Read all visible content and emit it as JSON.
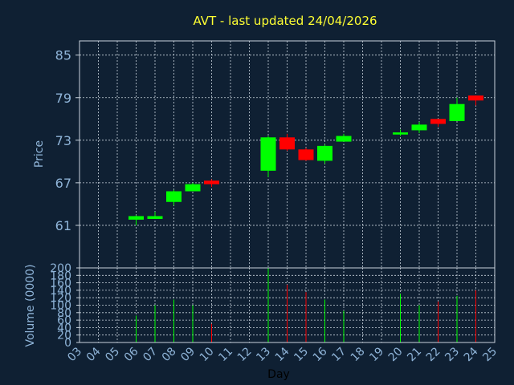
{
  "chart_data": {
    "type": "candlestick",
    "title": "AVT - last updated 24/04/2026",
    "colors": {
      "background": "#0f2033",
      "plot_border": "#c8d2dc",
      "grid": "#c8d2dc",
      "axis_text": "#8fb4d8",
      "title": "#ffff33",
      "up": "#00ff00",
      "down": "#ff0000",
      "xlabel": "#000000"
    },
    "price": {
      "ylabel": "Price",
      "ylim": [
        55,
        87
      ],
      "ticks": [
        61,
        67,
        73,
        79,
        85
      ],
      "grid": true
    },
    "volume": {
      "ylabel": "Volume (0000)",
      "ylim": [
        0,
        200
      ],
      "ticks": [
        0,
        20,
        40,
        60,
        80,
        100,
        120,
        140,
        160,
        180,
        200
      ],
      "grid": true
    },
    "x": {
      "xlabel": "Day",
      "ticks": [
        "03",
        "04",
        "05",
        "06",
        "07",
        "08",
        "09",
        "10",
        "11",
        "12",
        "13",
        "14",
        "15",
        "16",
        "17",
        "18",
        "19",
        "20",
        "21",
        "22",
        "23",
        "24",
        "25"
      ]
    },
    "candles": [
      {
        "day": "06",
        "open": 61.8,
        "high": 62.4,
        "low": 61.0,
        "close": 62.3,
        "volume": 72
      },
      {
        "day": "07",
        "open": 61.9,
        "high": 62.9,
        "low": 61.9,
        "close": 62.3,
        "volume": 100
      },
      {
        "day": "08",
        "open": 64.3,
        "high": 66.0,
        "low": 63.8,
        "close": 65.8,
        "volume": 115
      },
      {
        "day": "09",
        "open": 65.8,
        "high": 67.0,
        "low": 65.8,
        "close": 66.8,
        "volume": 100
      },
      {
        "day": "10",
        "open": 67.3,
        "high": 67.5,
        "low": 66.4,
        "close": 66.8,
        "volume": 50
      },
      {
        "day": "13",
        "open": 68.7,
        "high": 73.6,
        "low": 67.8,
        "close": 73.4,
        "volume": 200
      },
      {
        "day": "14",
        "open": 73.4,
        "high": 73.9,
        "low": 71.5,
        "close": 71.7,
        "volume": 155
      },
      {
        "day": "15",
        "open": 71.7,
        "high": 71.9,
        "low": 70.1,
        "close": 70.2,
        "volume": 135
      },
      {
        "day": "16",
        "open": 70.1,
        "high": 72.4,
        "low": 69.7,
        "close": 72.2,
        "volume": 115
      },
      {
        "day": "17",
        "open": 72.8,
        "high": 73.9,
        "low": 72.8,
        "close": 73.6,
        "volume": 85
      },
      {
        "day": "20",
        "open": 73.8,
        "high": 74.5,
        "low": 73.6,
        "close": 74.1,
        "volume": 130
      },
      {
        "day": "21",
        "open": 74.4,
        "high": 75.6,
        "low": 74.0,
        "close": 75.2,
        "volume": 100
      },
      {
        "day": "22",
        "open": 76.0,
        "high": 76.0,
        "low": 74.9,
        "close": 75.3,
        "volume": 110
      },
      {
        "day": "23",
        "open": 75.7,
        "high": 79.0,
        "low": 75.7,
        "close": 78.1,
        "volume": 125
      },
      {
        "day": "24",
        "open": 79.3,
        "high": 79.3,
        "low": 77.9,
        "close": 78.6,
        "volume": 140
      }
    ]
  }
}
